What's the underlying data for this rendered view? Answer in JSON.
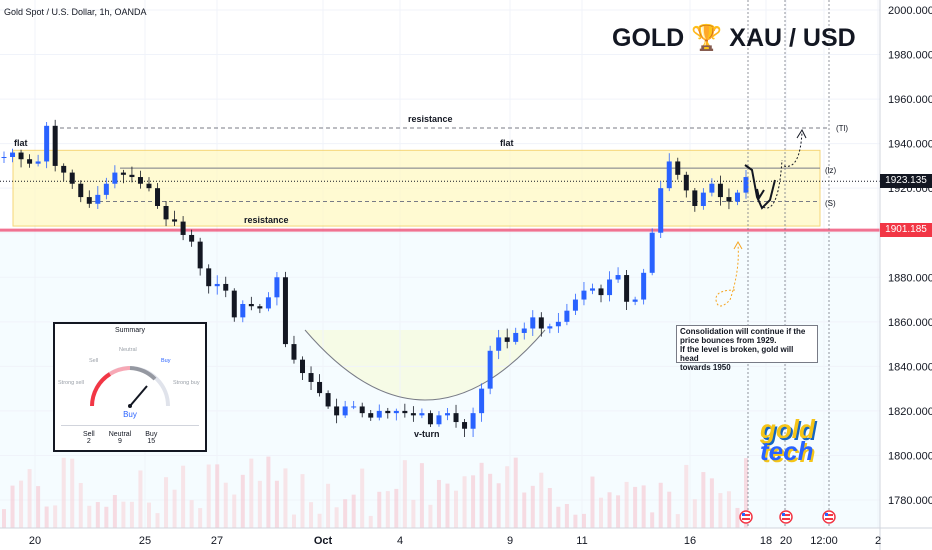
{
  "header": {
    "symbol": "Gold Spot / U.S. Dollar, 1h, OANDA",
    "big_title_left": "GOLD",
    "big_title_right": "XAU / USD",
    "trophy_icon": "trophy-icon"
  },
  "colors": {
    "up": "#2962ff",
    "down": "#131722",
    "zone_fill": "#fff9c4",
    "zone_border": "#f2c94c",
    "support_line": "#f05a7e",
    "current_price_bg": "#131722",
    "support_price_bg": "#f23645"
  },
  "annotations": {
    "flat_left": "flat",
    "flat_top": "flat",
    "resistance_top": "resistance",
    "resistance_mid": "resistance",
    "v_turn": "v-turn",
    "tag_tl": "(Tl)",
    "tag_lz": "(lz)",
    "tag_s": "(S)"
  },
  "note_lines": [
    "Consolidation will continue if the",
    "price bounces from 1929.",
    "If the level is broken, gold will head",
    "towards 1950"
  ],
  "summary": {
    "title": "Summary",
    "gauge_labels": {
      "strong_sell": "Strong sell",
      "sell": "Sell",
      "neutral": "Neutral",
      "buy": "Buy",
      "strong_buy": "Strong buy"
    },
    "result": "Buy",
    "counts": [
      {
        "label": "Sell",
        "value": "2"
      },
      {
        "label": "Neutral",
        "value": "9"
      },
      {
        "label": "Buy",
        "value": "15"
      }
    ]
  },
  "price_labels": {
    "current": "1923.135",
    "support": "1901.185"
  },
  "logo_text": {
    "line1": "gold",
    "line2": "tech"
  },
  "chart_data": {
    "type": "line",
    "title": "Gold Spot / U.S. Dollar, 1h, OANDA",
    "xlabel": "",
    "ylabel": "",
    "ylim": [
      1770,
      2005
    ],
    "y_ticks": [
      "2000.000",
      "1980.000",
      "1960.000",
      "1940.000",
      "1920.000",
      "1900.000",
      "1880.000",
      "1860.000",
      "1840.000",
      "1820.000",
      "1800.000",
      "1780.000"
    ],
    "x_ticks": [
      "20",
      "25",
      "27",
      "Oct",
      "4",
      "9",
      "11",
      "16",
      "18",
      "20",
      "12:00",
      "2"
    ],
    "levels": {
      "resistance_top": 1947,
      "consolidation_top": 1937,
      "lz": 1929,
      "current": 1923.135,
      "s": 1914,
      "zone_bottom": 1903,
      "support": 1901.185
    },
    "series": [
      {
        "values": [
          1934,
          1936,
          1933,
          1931,
          1932,
          1948,
          1930,
          1927,
          1922,
          1916,
          1913,
          1917,
          1922,
          1927,
          1926,
          1925,
          1922,
          1920,
          1912,
          1906,
          1905,
          1899,
          1896,
          1884,
          1876,
          1877,
          1874,
          1862,
          1868,
          1867,
          1866,
          1871,
          1880,
          1850,
          1843,
          1837,
          1833,
          1828,
          1822,
          1818,
          1822,
          1822,
          1819,
          1817,
          1820,
          1819,
          1820,
          1819,
          1818,
          1819,
          1814,
          1818,
          1819,
          1815,
          1812,
          1819,
          1830,
          1847,
          1853,
          1851,
          1855,
          1857,
          1862,
          1857,
          1858,
          1860,
          1865,
          1870,
          1874,
          1875,
          1872,
          1879,
          1881,
          1869,
          1870,
          1882,
          1900,
          1920,
          1932,
          1926,
          1919,
          1912,
          1918,
          1922,
          1916,
          1914,
          1918,
          1925
        ]
      }
    ]
  }
}
